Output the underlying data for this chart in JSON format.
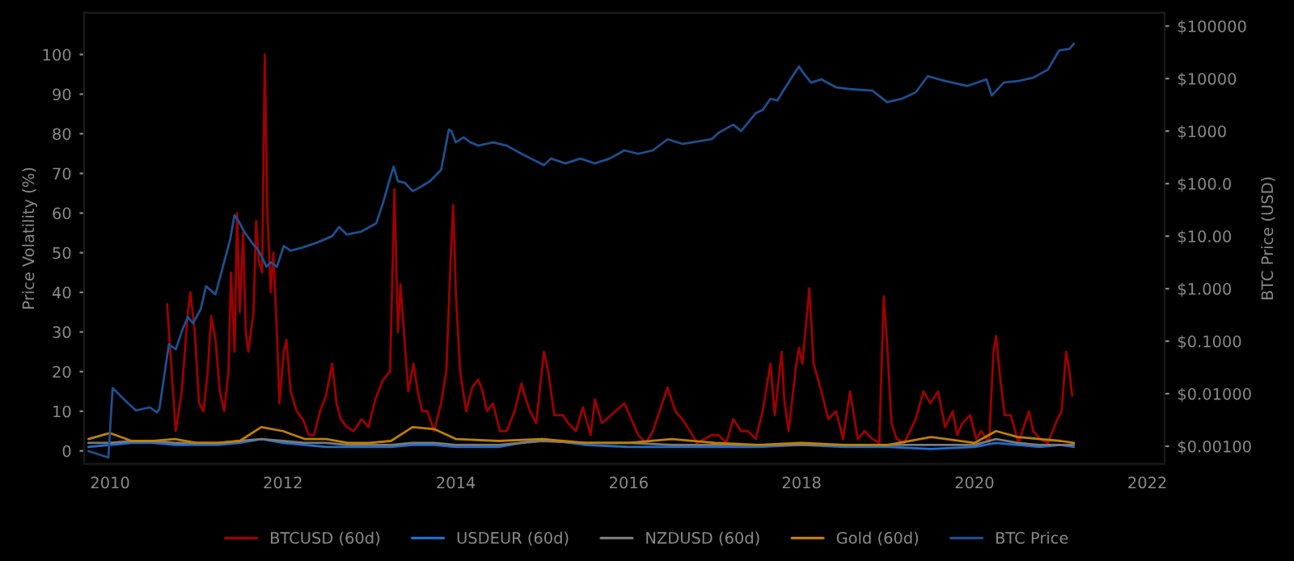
{
  "chart_data": {
    "type": "line",
    "ylabel": "Price Volatility (%)",
    "y2label": "BTC Price (USD)",
    "xlim": [
      2009.7,
      2022.2
    ],
    "xticks": [
      2010,
      2012,
      2014,
      2016,
      2018,
      2020,
      2022
    ],
    "ylim": [
      -3.3,
      110.5
    ],
    "yticks": [
      0,
      10,
      20,
      30,
      40,
      50,
      60,
      70,
      80,
      90,
      100
    ],
    "y2lim": [
      0.00046,
      178000
    ],
    "log": "y2",
    "y2ticks": [
      {
        "value": 0.001,
        "label": "$0.00100"
      },
      {
        "value": 0.01,
        "label": "$0.01000"
      },
      {
        "value": 0.1,
        "label": "$0.1000"
      },
      {
        "value": 1,
        "label": "$1.000"
      },
      {
        "value": 10,
        "label": "$10.00"
      },
      {
        "value": 100,
        "label": "$100.0"
      },
      {
        "value": 1000,
        "label": "$1000"
      },
      {
        "value": 10000,
        "label": "$10000"
      },
      {
        "value": 100000,
        "label": "$100000"
      }
    ],
    "grid": false,
    "legend": "bottom",
    "series": [
      {
        "name": "BTCUSD (60d)",
        "color": "#a00000",
        "x": [
          2010.66,
          2010.76,
          2010.83,
          2010.9,
          2010.93,
          2010.98,
          2011.03,
          2011.08,
          2011.13,
          2011.17,
          2011.22,
          2011.27,
          2011.32,
          2011.37,
          2011.4,
          2011.44,
          2011.47,
          2011.5,
          2011.54,
          2011.57,
          2011.6,
          2011.66,
          2011.69,
          2011.72,
          2011.76,
          2011.79,
          2011.82,
          2011.86,
          2011.89,
          2011.93,
          2011.96,
          2012.01,
          2012.04,
          2012.09,
          2012.16,
          2012.23,
          2012.3,
          2012.36,
          2012.43,
          2012.5,
          2012.57,
          2012.62,
          2012.67,
          2012.74,
          2012.82,
          2012.91,
          2012.99,
          2013.07,
          2013.16,
          2013.24,
          2013.29,
          2013.33,
          2013.36,
          2013.4,
          2013.45,
          2013.51,
          2013.56,
          2013.61,
          2013.67,
          2013.75,
          2013.83,
          2013.89,
          2013.94,
          2013.97,
          2014.0,
          2014.05,
          2014.12,
          2014.19,
          2014.26,
          2014.31,
          2014.36,
          2014.43,
          2014.51,
          2014.59,
          2014.68,
          2014.76,
          2014.81,
          2014.86,
          2014.93,
          2015.02,
          2015.07,
          2015.14,
          2015.24,
          2015.3,
          2015.39,
          2015.47,
          2015.56,
          2015.61,
          2015.69,
          2015.95,
          2016.03,
          2016.11,
          2016.2,
          2016.28,
          2016.45,
          2016.54,
          2016.62,
          2016.71,
          2016.79,
          2016.88,
          2016.96,
          2017.04,
          2017.13,
          2017.21,
          2017.3,
          2017.38,
          2017.47,
          2017.55,
          2017.64,
          2017.69,
          2017.77,
          2017.8,
          2017.85,
          2017.94,
          2017.97,
          2018.01,
          2018.09,
          2018.14,
          2018.23,
          2018.31,
          2018.4,
          2018.48,
          2018.56,
          2018.65,
          2018.73,
          2018.82,
          2018.9,
          2018.95,
          2018.99,
          2019.04,
          2019.1,
          2019.19,
          2019.32,
          2019.41,
          2019.49,
          2019.58,
          2019.66,
          2019.75,
          2019.8,
          2019.86,
          2019.95,
          2020.02,
          2020.08,
          2020.17,
          2020.22,
          2020.25,
          2020.3,
          2020.35,
          2020.42,
          2020.51,
          2020.63,
          2020.68,
          2020.76,
          2020.85,
          2020.96,
          2021.01,
          2021.06,
          2021.1,
          2021.13
        ],
        "values": [
          37,
          5,
          15,
          35,
          40,
          30,
          12,
          10,
          20,
          34,
          28,
          15,
          10,
          20,
          45,
          25,
          60,
          35,
          55,
          30,
          25,
          35,
          58,
          48,
          45,
          100,
          60,
          40,
          50,
          30,
          12,
          25,
          28,
          15,
          10,
          8,
          4,
          4,
          10,
          14,
          22,
          12,
          8,
          6,
          5,
          8,
          6,
          13,
          18,
          20,
          66,
          30,
          42,
          30,
          15,
          22,
          15,
          10,
          10,
          5,
          12,
          20,
          48,
          62,
          40,
          20,
          10,
          16,
          18,
          15,
          10,
          12,
          5,
          5,
          10,
          17,
          13,
          10,
          7,
          25,
          20,
          9,
          9,
          7,
          5,
          11,
          4,
          13,
          7,
          12,
          8,
          4,
          2,
          5,
          16,
          10,
          8,
          5,
          2,
          3,
          4,
          4,
          2,
          8,
          5,
          5,
          3,
          10,
          22,
          9,
          25,
          13,
          5,
          22,
          26,
          22,
          41,
          22,
          15,
          8,
          10,
          3,
          15,
          3,
          5,
          3,
          2,
          39,
          27,
          7,
          3,
          2,
          8,
          15,
          12,
          15,
          6,
          10,
          4,
          7,
          9,
          3,
          5,
          2,
          25,
          29,
          18,
          9,
          9,
          2,
          10,
          5,
          3,
          2,
          8,
          10,
          25,
          20,
          14
        ]
      },
      {
        "name": "USDEUR (60d)",
        "color": "#1f6fd0",
        "x": [
          2009.75,
          2010.0,
          2010.25,
          2010.5,
          2010.75,
          2011.0,
          2011.25,
          2011.5,
          2011.75,
          2012.0,
          2012.25,
          2012.5,
          2012.75,
          2013.0,
          2013.25,
          2013.5,
          2013.75,
          2014.0,
          2014.5,
          2015.0,
          2015.5,
          2016.0,
          2016.5,
          2017.0,
          2017.5,
          2018.0,
          2018.5,
          2019.0,
          2019.5,
          2020.0,
          2020.25,
          2020.5,
          2020.75,
          2021.0,
          2021.15
        ],
        "values": [
          1,
          1.5,
          2,
          2,
          1.5,
          1.5,
          1.5,
          2,
          3,
          2,
          1.5,
          1,
          1,
          1,
          1,
          1.5,
          1.5,
          1,
          1,
          3,
          1.5,
          1,
          1,
          1,
          1,
          1.5,
          1,
          1,
          0.5,
          1,
          2,
          1.5,
          1,
          1.5,
          1
        ]
      },
      {
        "name": "NZDUSD (60d)",
        "color": "#7a7a7a",
        "x": [
          2009.75,
          2010.0,
          2010.25,
          2010.5,
          2010.75,
          2011.0,
          2011.25,
          2011.5,
          2011.75,
          2012.0,
          2012.25,
          2012.5,
          2012.75,
          2013.0,
          2013.25,
          2013.5,
          2013.75,
          2014.0,
          2014.5,
          2015.0,
          2015.5,
          2016.0,
          2016.5,
          2017.0,
          2017.5,
          2018.0,
          2018.5,
          2019.0,
          2019.5,
          2020.0,
          2020.25,
          2020.5,
          2020.75,
          2021.0,
          2021.15
        ],
        "values": [
          2,
          2,
          2.5,
          2.5,
          2,
          2,
          2,
          2.5,
          3,
          2.5,
          2,
          2,
          1.5,
          1.5,
          1.5,
          2,
          2,
          1.5,
          1.5,
          2.5,
          2,
          2,
          1.5,
          1.5,
          1.5,
          1.5,
          1.5,
          1.5,
          1.5,
          1.5,
          3,
          2,
          1.5,
          1.5,
          1.5
        ]
      },
      {
        "name": "Gold (60d)",
        "color": "#c08000",
        "x": [
          2009.75,
          2010.0,
          2010.25,
          2010.5,
          2010.75,
          2011.0,
          2011.25,
          2011.5,
          2011.75,
          2012.0,
          2012.25,
          2012.5,
          2012.75,
          2013.0,
          2013.25,
          2013.5,
          2013.75,
          2014.0,
          2014.5,
          2015.0,
          2015.5,
          2016.0,
          2016.5,
          2017.0,
          2017.5,
          2018.0,
          2018.5,
          2019.0,
          2019.5,
          2020.0,
          2020.25,
          2020.5,
          2020.75,
          2021.0,
          2021.15
        ],
        "values": [
          3,
          4.5,
          2.5,
          2.5,
          3,
          2,
          2,
          2.5,
          6,
          5,
          3,
          3,
          2,
          2,
          2.5,
          6,
          5.5,
          3,
          2.5,
          3,
          2,
          2,
          3,
          2,
          1.5,
          2,
          1.5,
          1.5,
          3.5,
          2,
          5,
          3.5,
          3,
          2.5,
          2
        ]
      },
      {
        "name": "BTC Price",
        "color": "#1f4f8f",
        "axis": "y2",
        "x": [
          2009.75,
          2009.98,
          2010.03,
          2010.2,
          2010.3,
          2010.46,
          2010.54,
          2010.57,
          2010.59,
          2010.68,
          2010.76,
          2010.83,
          2010.9,
          2010.96,
          2011.05,
          2011.11,
          2011.22,
          2011.33,
          2011.39,
          2011.44,
          2011.49,
          2011.55,
          2011.64,
          2011.72,
          2011.81,
          2011.86,
          2011.93,
          2012.01,
          2012.09,
          2012.23,
          2012.4,
          2012.57,
          2012.65,
          2012.74,
          2012.91,
          2013.08,
          2013.16,
          2013.24,
          2013.28,
          2013.33,
          2013.41,
          2013.5,
          2013.58,
          2013.7,
          2013.83,
          2013.92,
          2013.95,
          2014.0,
          2014.09,
          2014.17,
          2014.26,
          2014.43,
          2014.59,
          2014.76,
          2015.02,
          2015.1,
          2015.27,
          2015.44,
          2015.61,
          2015.78,
          2015.95,
          2016.11,
          2016.28,
          2016.45,
          2016.62,
          2016.96,
          2017.04,
          2017.21,
          2017.3,
          2017.47,
          2017.55,
          2017.64,
          2017.72,
          2017.8,
          2017.92,
          2017.97,
          2018.02,
          2018.11,
          2018.23,
          2018.4,
          2018.56,
          2018.82,
          2018.99,
          2019.16,
          2019.32,
          2019.46,
          2019.66,
          2019.92,
          2020.14,
          2020.2,
          2020.34,
          2020.51,
          2020.68,
          2020.85,
          2020.98,
          2021.1,
          2021.15
        ],
        "values": [
          0.00081,
          0.00061,
          0.0128,
          0.0068,
          0.0048,
          0.0055,
          0.0044,
          0.0051,
          0.0084,
          0.087,
          0.07,
          0.153,
          0.29,
          0.22,
          0.41,
          1.11,
          0.78,
          3.7,
          8.7,
          25,
          19,
          12.3,
          7.6,
          5.3,
          2.6,
          3.2,
          2.6,
          6.5,
          5.3,
          6.1,
          7.6,
          10,
          15,
          10.7,
          12.3,
          17.6,
          44,
          128,
          210,
          111,
          104,
          72,
          84,
          111,
          182,
          1070,
          1000,
          610,
          760,
          610,
          530,
          610,
          530,
          370,
          226,
          300,
          243,
          300,
          243,
          300,
          430,
          370,
          430,
          700,
          570,
          700,
          930,
          1330,
          1000,
          2190,
          2520,
          4120,
          3840,
          6300,
          12800,
          17000,
          12800,
          8400,
          9660,
          6800,
          6300,
          5880,
          3560,
          4120,
          5470,
          11100,
          9000,
          7250,
          9660,
          4760,
          8400,
          9000,
          10400,
          14800,
          34500,
          37000,
          46000
        ]
      }
    ]
  }
}
